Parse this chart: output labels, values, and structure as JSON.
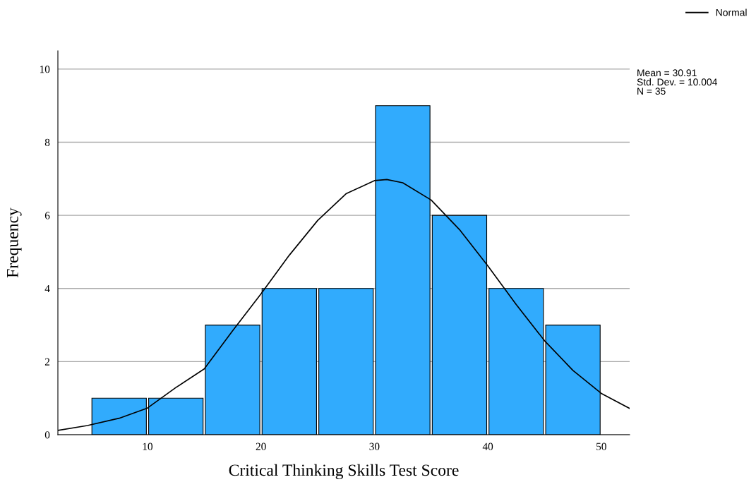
{
  "chart_data": {
    "type": "histogram",
    "xlabel": "Critical Thinking Skills Test Score",
    "ylabel": "Frequency",
    "series": [
      {
        "color": "#31abfd",
        "bins": [
          5,
          10,
          15,
          20,
          25,
          30,
          35,
          40,
          45,
          50
        ],
        "values": [
          1,
          1,
          3,
          4,
          4,
          9,
          6,
          4,
          3
        ]
      },
      {
        "type": "line",
        "name": "Normal",
        "color": "#000000",
        "x": [
          2.1,
          4.7,
          7.5,
          10,
          12.5,
          15,
          17.5,
          20,
          22.5,
          25,
          27.5,
          30,
          31.1,
          32.5,
          35,
          37.5,
          40,
          42.5,
          45,
          47.5,
          50,
          52.5
        ],
        "values": [
          0.12,
          0.25,
          0.45,
          0.73,
          1.29,
          1.8,
          2.84,
          3.85,
          4.91,
          5.86,
          6.59,
          6.95,
          6.98,
          6.89,
          6.42,
          5.61,
          4.62,
          3.56,
          2.57,
          1.76,
          1.13,
          0.72
        ]
      }
    ],
    "xlim": [
      2.1,
      52.5
    ],
    "ylim": [
      0,
      10.5
    ],
    "xticks": [
      10,
      20,
      30,
      40,
      50
    ],
    "yticks": [
      0,
      2,
      4,
      6,
      8,
      10
    ],
    "grid": "y",
    "legend": "top right",
    "annotations": [
      "Mean = 30.91\nStd. Dev. = 10.004\nN = 35"
    ]
  }
}
